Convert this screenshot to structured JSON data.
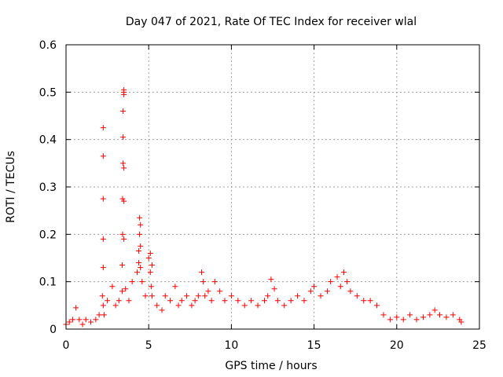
{
  "chart_data": {
    "type": "scatter",
    "title": "Day 047 of 2021, Rate Of TEC Index for receiver wlal",
    "xlabel": "GPS time / hours",
    "ylabel": "ROTI / TECUs",
    "xlim": [
      0,
      25
    ],
    "ylim": [
      0,
      0.6
    ],
    "xticks": [
      0,
      5,
      10,
      15,
      20,
      25
    ],
    "yticks": [
      0,
      0.1,
      0.2,
      0.3,
      0.4,
      0.5,
      0.6
    ],
    "xtick_labels": [
      "0",
      "5",
      "10",
      "15",
      "20",
      "25"
    ],
    "ytick_labels": [
      "0",
      "0.1",
      "0.2",
      "0.3",
      "0.4",
      "0.5",
      "0.6"
    ],
    "grid": true,
    "marker": "plus",
    "color": "#ff0000",
    "series": [
      {
        "x": [
          0.0,
          0.2,
          0.4,
          0.6,
          0.8,
          1.0,
          1.2,
          1.5,
          1.8,
          2.0,
          2.2,
          2.25,
          2.25,
          2.25,
          2.25,
          2.25,
          2.25,
          2.3,
          2.5,
          2.8,
          3.0,
          3.2,
          3.4,
          3.4,
          3.42,
          3.42,
          3.45,
          3.45,
          3.45,
          3.5,
          3.5,
          3.5,
          3.5,
          3.5,
          3.5,
          3.6,
          3.8,
          4.0,
          4.3,
          4.4,
          4.4,
          4.45,
          4.45,
          4.5,
          4.5,
          4.5,
          4.6,
          4.8,
          5.0,
          5.1,
          5.1,
          5.15,
          5.2,
          5.2,
          5.5,
          5.8,
          6.0,
          6.3,
          6.6,
          6.8,
          7.0,
          7.3,
          7.6,
          7.8,
          8.0,
          8.2,
          8.3,
          8.4,
          8.6,
          8.8,
          9.0,
          9.3,
          9.6,
          10.0,
          10.4,
          10.8,
          11.2,
          11.6,
          12.0,
          12.2,
          12.4,
          12.6,
          12.8,
          13.2,
          13.6,
          14.0,
          14.4,
          14.8,
          15.0,
          15.4,
          15.8,
          16.0,
          16.4,
          16.6,
          16.8,
          17.0,
          17.2,
          17.6,
          18.0,
          18.4,
          18.8,
          19.2,
          19.6,
          20.0,
          20.4,
          20.8,
          21.2,
          21.6,
          22.0,
          22.3,
          22.6,
          23.0,
          23.4,
          23.8,
          23.9
        ],
        "y": [
          0.01,
          0.015,
          0.02,
          0.045,
          0.02,
          0.01,
          0.02,
          0.015,
          0.02,
          0.03,
          0.07,
          0.13,
          0.19,
          0.275,
          0.365,
          0.425,
          0.05,
          0.03,
          0.06,
          0.09,
          0.05,
          0.06,
          0.08,
          0.135,
          0.2,
          0.275,
          0.35,
          0.405,
          0.46,
          0.5,
          0.505,
          0.495,
          0.34,
          0.27,
          0.19,
          0.085,
          0.06,
          0.1,
          0.12,
          0.14,
          0.165,
          0.2,
          0.235,
          0.22,
          0.175,
          0.13,
          0.1,
          0.07,
          0.15,
          0.16,
          0.12,
          0.09,
          0.135,
          0.07,
          0.05,
          0.04,
          0.07,
          0.06,
          0.09,
          0.05,
          0.06,
          0.07,
          0.05,
          0.06,
          0.07,
          0.12,
          0.1,
          0.07,
          0.08,
          0.06,
          0.1,
          0.08,
          0.06,
          0.07,
          0.06,
          0.05,
          0.06,
          0.05,
          0.06,
          0.07,
          0.105,
          0.085,
          0.06,
          0.05,
          0.06,
          0.07,
          0.06,
          0.08,
          0.09,
          0.07,
          0.08,
          0.1,
          0.11,
          0.09,
          0.12,
          0.1,
          0.08,
          0.07,
          0.06,
          0.06,
          0.05,
          0.03,
          0.02,
          0.025,
          0.02,
          0.03,
          0.02,
          0.025,
          0.03,
          0.04,
          0.03,
          0.025,
          0.03,
          0.02,
          0.015
        ]
      }
    ]
  }
}
